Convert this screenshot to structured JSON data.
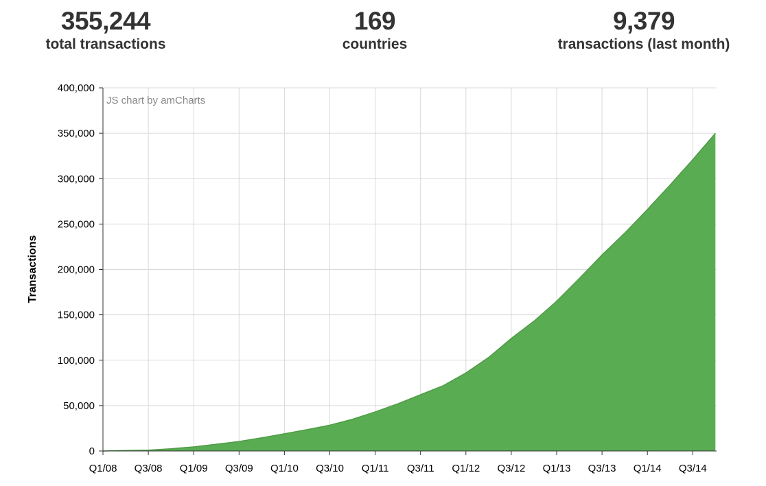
{
  "stats": [
    {
      "value": "355,244",
      "label": "total transactions"
    },
    {
      "value": "169",
      "label": "countries"
    },
    {
      "value": "9,379",
      "label": "transactions (last month)"
    }
  ],
  "colors": {
    "area_fill": "#5aac52",
    "area_line": "#4f9c47",
    "grid": "#d9d9d9",
    "axis": "#333333",
    "credit": "#888888"
  },
  "chart_data": {
    "type": "area",
    "title": "",
    "xlabel": "",
    "ylabel": "Transactions",
    "credit": "JS chart by amCharts",
    "ylim": [
      0,
      400000
    ],
    "yticks": [
      0,
      50000,
      100000,
      150000,
      200000,
      250000,
      300000,
      350000,
      400000
    ],
    "ytick_labels": [
      "0",
      "50,000",
      "100,000",
      "150,000",
      "200,000",
      "250,000",
      "300,000",
      "350,000",
      "400,000"
    ],
    "xtick_labels": [
      "Q1/08",
      "Q3/08",
      "Q1/09",
      "Q3/09",
      "Q1/10",
      "Q3/10",
      "Q1/11",
      "Q3/11",
      "Q1/12",
      "Q3/12",
      "Q1/13",
      "Q3/13",
      "Q1/14",
      "Q3/14"
    ],
    "grid": true,
    "series": [
      {
        "x": [
          "Q1/08",
          "Q2/08",
          "Q3/08",
          "Q4/08",
          "Q1/09",
          "Q2/09",
          "Q3/09",
          "Q4/09",
          "Q1/10",
          "Q2/10",
          "Q3/10",
          "Q4/10",
          "Q1/11",
          "Q2/11",
          "Q3/11",
          "Q4/11",
          "Q1/12",
          "Q2/12",
          "Q3/12",
          "Q4/12",
          "Q1/13",
          "Q2/13",
          "Q3/13",
          "Q4/13",
          "Q1/14",
          "Q2/14",
          "Q3/14",
          "Q4/14"
        ],
        "values": [
          0,
          500,
          1000,
          2500,
          4500,
          7500,
          10500,
          14500,
          19000,
          23500,
          28500,
          35000,
          43000,
          52000,
          62000,
          72000,
          86000,
          103000,
          124000,
          143000,
          165000,
          190000,
          216000,
          240000,
          266000,
          293000,
          321000,
          350000
        ]
      }
    ]
  }
}
